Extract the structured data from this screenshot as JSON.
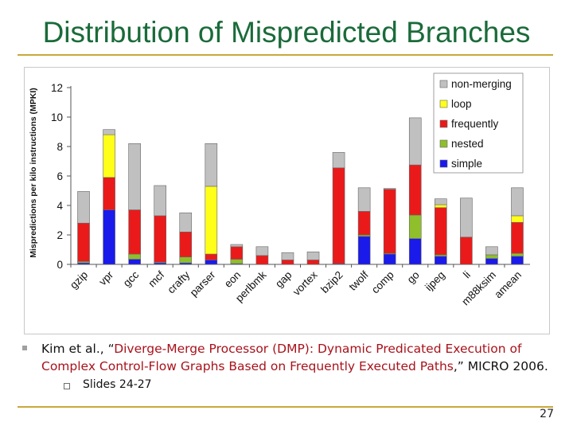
{
  "slide": {
    "title": "Distribution of Mispredicted Branches",
    "citation": {
      "prefix": "Kim et al., “",
      "title_part1": "Diverge-Merge Processor (DMP): Dynamic Predicated Execution of",
      "title_part2": "Complex Control-Flow Graphs Based on Frequently Executed Paths",
      "suffix": ",” MICRO 2006."
    },
    "sub_bullet": "Slides 24-27",
    "page_number": "27"
  },
  "colors": {
    "title": "#1a6b3a",
    "rule": "#c9a83a",
    "simple": "#1a1aeb",
    "nested": "#8fbf2a",
    "frequently": "#ea1a1a",
    "loop": "#ffff1a",
    "non_merging": "#c0c0c0"
  },
  "chart_data": {
    "type": "bar",
    "stacked": true,
    "ylabel": "Mispredictions per kilo instructions (MPKI)",
    "xlabel": "",
    "ylim": [
      0,
      12
    ],
    "yticks": [
      "0",
      "2",
      "4",
      "6",
      "8",
      "10",
      "12"
    ],
    "grid": false,
    "legend_position": "top-right",
    "legend": [
      "non-merging",
      "loop",
      "frequently",
      "nested",
      "simple"
    ],
    "categories": [
      "gzip",
      "vpr",
      "gcc",
      "mcf",
      "crafty",
      "parser",
      "eon",
      "perlbmk",
      "gap",
      "vortex",
      "bzip2",
      "twolf",
      "comp",
      "go",
      "ijpeg",
      "li",
      "m88ksim",
      "amean"
    ],
    "series": [
      {
        "name": "simple",
        "color": "#1a1aeb",
        "values": [
          0.1,
          3.7,
          0.35,
          0.1,
          0.1,
          0.3,
          0.05,
          0.0,
          0.0,
          0.0,
          0.05,
          1.9,
          0.7,
          1.75,
          0.55,
          0.0,
          0.4,
          0.55
        ]
      },
      {
        "name": "nested",
        "color": "#8fbf2a",
        "values": [
          0.1,
          0.0,
          0.35,
          0.05,
          0.4,
          0.0,
          0.3,
          0.0,
          0.0,
          0.0,
          0.0,
          0.1,
          0.05,
          1.6,
          0.1,
          0.0,
          0.25,
          0.2
        ]
      },
      {
        "name": "frequently",
        "color": "#ea1a1a",
        "values": [
          2.6,
          2.2,
          3.0,
          3.15,
          1.7,
          0.4,
          0.85,
          0.6,
          0.3,
          0.3,
          6.5,
          1.6,
          4.35,
          3.4,
          3.2,
          1.85,
          0.0,
          2.1
        ]
      },
      {
        "name": "loop",
        "color": "#ffff1a",
        "values": [
          0.0,
          2.9,
          0.0,
          0.0,
          0.0,
          4.6,
          0.0,
          0.0,
          0.0,
          0.0,
          0.0,
          0.0,
          0.0,
          0.0,
          0.2,
          0.0,
          0.0,
          0.45
        ]
      },
      {
        "name": "non-merging",
        "color": "#c0c0c0",
        "values": [
          2.15,
          0.35,
          4.5,
          2.05,
          1.3,
          2.9,
          0.15,
          0.6,
          0.5,
          0.55,
          1.05,
          1.6,
          0.05,
          3.2,
          0.4,
          2.65,
          0.55,
          1.9
        ]
      }
    ]
  }
}
